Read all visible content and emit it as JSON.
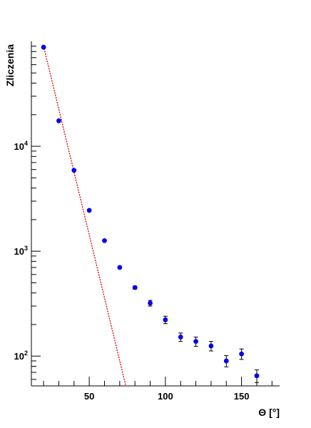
{
  "chart_data": {
    "type": "scatter",
    "title": "",
    "xlabel": "Θ [°]",
    "ylabel": "Zliczenia",
    "xlim": [
      12,
      175
    ],
    "ylim": [
      52,
      100000
    ],
    "yscale": "log",
    "grid": false,
    "legend": "none",
    "x_ticks": [
      50,
      100,
      150
    ],
    "x_tick_labels": [
      "50",
      "100",
      "150"
    ],
    "y_ticks": [
      100,
      1000,
      10000
    ],
    "y_tick_labels": [
      {
        "base": "10",
        "exp": "2"
      },
      {
        "base": "10",
        "exp": "3"
      },
      {
        "base": "10",
        "exp": "4"
      }
    ],
    "series": [
      {
        "kind": "points_with_errors",
        "color": "#0000ee",
        "points": [
          {
            "x": 20,
            "y": 88000,
            "err": 0
          },
          {
            "x": 30,
            "y": 17500,
            "err": 0
          },
          {
            "x": 40,
            "y": 5900,
            "err": 0
          },
          {
            "x": 50,
            "y": 2450,
            "err": 0
          },
          {
            "x": 60,
            "y": 1260,
            "err": 0
          },
          {
            "x": 70,
            "y": 700,
            "err": 0
          },
          {
            "x": 80,
            "y": 450,
            "err": 15
          },
          {
            "x": 90,
            "y": 320,
            "err": 20
          },
          {
            "x": 100,
            "y": 222,
            "err": 18
          },
          {
            "x": 110,
            "y": 152,
            "err": 14
          },
          {
            "x": 120,
            "y": 138,
            "err": 14
          },
          {
            "x": 130,
            "y": 125,
            "err": 13
          },
          {
            "x": 140,
            "y": 90,
            "err": 11
          },
          {
            "x": 150,
            "y": 105,
            "err": 12
          },
          {
            "x": 160,
            "y": 65,
            "err": 9
          }
        ]
      },
      {
        "kind": "fit_line",
        "color": "#dd0000",
        "dashed": true,
        "x": [
          20,
          74
        ],
        "y": [
          90000,
          52
        ]
      }
    ]
  }
}
